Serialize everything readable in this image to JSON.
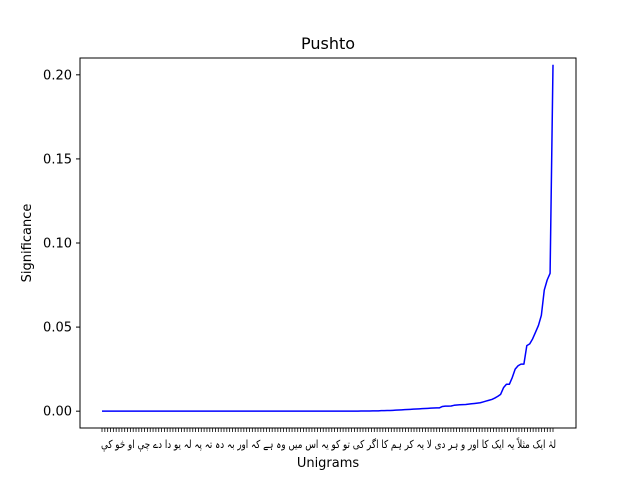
{
  "chart_data": {
    "type": "line",
    "title": "Pushto",
    "xlabel": "Unigrams",
    "ylabel": "Significance",
    "ylim": [
      -0.01,
      0.21
    ],
    "yticks": [
      0.0,
      0.05,
      0.1,
      0.15,
      0.2
    ],
    "ytick_labels": [
      "0.00",
      "0.05",
      "0.10",
      "0.15",
      "0.20"
    ],
    "series_color": "#0000ff",
    "category_count": 160,
    "x_tick_labels_note": "160 unigram category ticks; labels are overlapping Pashto script glyphs (illegible)",
    "x_tick_text": "لہٰ ایک مثلاً یہ ایک کا اور و ہر دی لا یہ کر ہم کا اگر کی تو کو یہ اس میں وہ ہے کہ اور بہ دہ تہ پہ لہ یو دا دے چې او څو کې",
    "values": [
      0.0,
      0.0,
      0.0,
      0.0,
      0.0,
      0.0,
      0.0,
      0.0,
      0.0,
      0.0,
      0.0,
      0.0,
      0.0,
      0.0,
      0.0,
      0.0,
      0.0,
      0.0,
      0.0,
      0.0,
      0.0,
      0.0,
      0.0,
      0.0,
      0.0,
      0.0,
      0.0,
      0.0,
      0.0,
      0.0,
      0.0,
      0.0,
      0.0,
      0.0,
      0.0,
      0.0,
      0.0,
      0.0,
      0.0,
      0.0,
      0.0,
      0.0,
      0.0,
      0.0,
      0.0,
      0.0,
      0.0,
      0.0,
      0.0,
      0.0,
      0.0,
      0.0,
      0.0,
      0.0,
      0.0,
      0.0,
      0.0,
      0.0,
      0.0,
      0.0,
      0.0,
      0.0,
      0.0,
      0.0,
      0.0,
      0.0,
      0.0,
      0.0,
      0.0,
      0.0,
      0.0,
      0.0,
      0.0,
      0.0,
      0.0,
      0.0,
      0.0,
      0.0,
      0.0,
      0.0,
      0.0,
      0.0,
      0.0,
      0.0,
      0.0,
      0.0,
      0.0,
      0.0,
      0.0,
      0.0001,
      0.0001,
      0.0001,
      0.0001,
      0.0002,
      0.0002,
      0.0002,
      0.0003,
      0.0003,
      0.0004,
      0.0004,
      0.0005,
      0.0006,
      0.0007,
      0.0008,
      0.0009,
      0.001,
      0.0011,
      0.0012,
      0.0013,
      0.0014,
      0.0015,
      0.0016,
      0.0017,
      0.0018,
      0.0019,
      0.002,
      0.002,
      0.0028,
      0.003,
      0.003,
      0.0031,
      0.0035,
      0.0037,
      0.0038,
      0.0039,
      0.004,
      0.0042,
      0.0044,
      0.0046,
      0.0048,
      0.005,
      0.0055,
      0.006,
      0.0065,
      0.007,
      0.0078,
      0.0088,
      0.01,
      0.014,
      0.016,
      0.016,
      0.02,
      0.025,
      0.027,
      0.028,
      0.028,
      0.039,
      0.04,
      0.043,
      0.047,
      0.051,
      0.057,
      0.072,
      0.078,
      0.082,
      0.206
    ]
  }
}
